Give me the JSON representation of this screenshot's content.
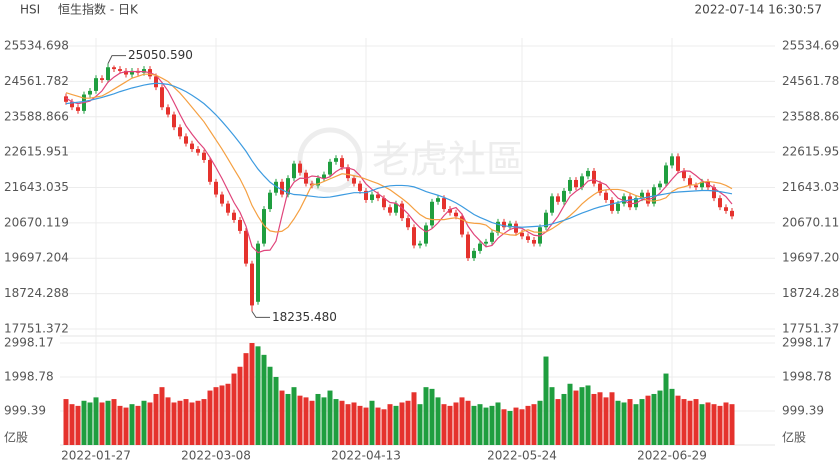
{
  "chart_data": {
    "type": "candlestick",
    "title": "HSI",
    "subtitle": "恒生指数 - 日K",
    "timestamp": "2022-07-14 16:30:57",
    "watermark": "老虎社區",
    "up_color": "#1f9e3f",
    "down_color": "#e5322d",
    "categories": [
      null,
      null,
      null,
      null,
      null,
      "2022-01-27",
      null,
      null,
      null,
      null,
      null,
      null,
      null,
      null,
      null,
      null,
      null,
      null,
      null,
      null,
      null,
      null,
      null,
      null,
      null,
      "2022-03-08",
      null,
      null,
      null,
      null,
      null,
      null,
      null,
      null,
      null,
      null,
      null,
      null,
      null,
      null,
      null,
      null,
      null,
      null,
      null,
      null,
      null,
      null,
      null,
      null,
      "2022-04-13",
      null,
      null,
      null,
      null,
      null,
      null,
      null,
      null,
      null,
      null,
      null,
      null,
      null,
      null,
      null,
      null,
      null,
      null,
      null,
      null,
      null,
      null,
      null,
      null,
      null,
      "2022-05-24",
      null,
      null,
      null,
      null,
      null,
      null,
      null,
      null,
      null,
      null,
      null,
      null,
      null,
      null,
      null,
      null,
      null,
      null,
      null,
      null,
      null,
      null,
      null,
      null,
      "2022-06-29",
      null,
      null,
      null,
      null,
      null,
      null,
      null,
      null,
      null,
      null
    ],
    "ohlc": [
      [
        24150,
        24230,
        23920,
        24000
      ],
      [
        24000,
        24080,
        23770,
        23850
      ],
      [
        23850,
        23930,
        23670,
        23750
      ],
      [
        23750,
        24280,
        23670,
        24200
      ],
      [
        24200,
        24380,
        24120,
        24300
      ],
      [
        24300,
        24730,
        24220,
        24650
      ],
      [
        24650,
        24730,
        24520,
        24600
      ],
      [
        24600,
        25050.59,
        24520,
        24950
      ],
      [
        24950,
        25000,
        24820,
        24900
      ],
      [
        24900,
        24980,
        24770,
        24850
      ],
      [
        24850,
        24930,
        24670,
        24750
      ],
      [
        24750,
        24930,
        24670,
        24850
      ],
      [
        24850,
        24930,
        24720,
        24800
      ],
      [
        24800,
        24980,
        24720,
        24900
      ],
      [
        24900,
        24980,
        24620,
        24700
      ],
      [
        24700,
        24780,
        24320,
        24400
      ],
      [
        24400,
        24480,
        23770,
        23850
      ],
      [
        23850,
        23930,
        23570,
        23650
      ],
      [
        23650,
        23730,
        23220,
        23300
      ],
      [
        23300,
        23380,
        22970,
        23050
      ],
      [
        23050,
        23130,
        22770,
        22850
      ],
      [
        22850,
        22930,
        22620,
        22700
      ],
      [
        22700,
        22780,
        22520,
        22600
      ],
      [
        22600,
        22680,
        22320,
        22400
      ],
      [
        22400,
        22480,
        21720,
        21800
      ],
      [
        21800,
        21880,
        21370,
        21450
      ],
      [
        21450,
        21530,
        21120,
        21200
      ],
      [
        21200,
        21280,
        20870,
        20950
      ],
      [
        20950,
        21030,
        20670,
        20750
      ],
      [
        20750,
        20830,
        20370,
        20450
      ],
      [
        20450,
        20530,
        19470,
        19550
      ],
      [
        19550,
        19630,
        18235.48,
        18400
      ],
      [
        18500,
        20180,
        18420,
        20100
      ],
      [
        20100,
        21130,
        20020,
        21050
      ],
      [
        21050,
        21580,
        20970,
        21500
      ],
      [
        21500,
        21880,
        21420,
        21800
      ],
      [
        21800,
        21880,
        21370,
        21450
      ],
      [
        21450,
        21980,
        21370,
        21900
      ],
      [
        21900,
        22380,
        21820,
        22300
      ],
      [
        22300,
        22380,
        21970,
        22050
      ],
      [
        22050,
        22130,
        21670,
        21750
      ],
      [
        21750,
        21830,
        21620,
        21700
      ],
      [
        21700,
        21980,
        21620,
        21900
      ],
      [
        21900,
        22080,
        21820,
        22000
      ],
      [
        22000,
        22430,
        21920,
        22350
      ],
      [
        22350,
        22530,
        22270,
        22450
      ],
      [
        22450,
        22530,
        22120,
        22200
      ],
      [
        22200,
        22280,
        21820,
        21900
      ],
      [
        21900,
        21980,
        21670,
        21750
      ],
      [
        21750,
        21830,
        21470,
        21550
      ],
      [
        21550,
        21630,
        21220,
        21300
      ],
      [
        21300,
        21530,
        21220,
        21450
      ],
      [
        21450,
        21530,
        21270,
        21350
      ],
      [
        21350,
        21430,
        21020,
        21100
      ],
      [
        21100,
        21180,
        20870,
        20950
      ],
      [
        20950,
        21280,
        20870,
        21200
      ],
      [
        21200,
        21280,
        20720,
        20800
      ],
      [
        20800,
        20880,
        20470,
        20550
      ],
      [
        20550,
        20630,
        19970,
        20050
      ],
      [
        20050,
        20180,
        19970,
        20100
      ],
      [
        20100,
        20680,
        20020,
        20600
      ],
      [
        20600,
        21330,
        20520,
        21250
      ],
      [
        21250,
        21430,
        21170,
        21350
      ],
      [
        21350,
        21430,
        20970,
        21050
      ],
      [
        21050,
        21130,
        20870,
        20950
      ],
      [
        20950,
        21030,
        20770,
        20850
      ],
      [
        20850,
        20930,
        20270,
        20350
      ],
      [
        20350,
        20430,
        19620,
        19700
      ],
      [
        19700,
        19980,
        19620,
        19900
      ],
      [
        19900,
        20180,
        19820,
        20100
      ],
      [
        20100,
        20230,
        20020,
        20150
      ],
      [
        20150,
        20480,
        20070,
        20400
      ],
      [
        20400,
        20780,
        20320,
        20700
      ],
      [
        20700,
        20780,
        20470,
        20550
      ],
      [
        20550,
        20730,
        20470,
        20650
      ],
      [
        20650,
        20730,
        20320,
        20400
      ],
      [
        20400,
        20480,
        20220,
        20300
      ],
      [
        20300,
        20380,
        20120,
        20200
      ],
      [
        20200,
        20280,
        20020,
        20100
      ],
      [
        20100,
        20630,
        20020,
        20550
      ],
      [
        20550,
        21030,
        20470,
        20950
      ],
      [
        20950,
        21480,
        20870,
        21400
      ],
      [
        21400,
        21480,
        21170,
        21250
      ],
      [
        21250,
        21630,
        21170,
        21550
      ],
      [
        21550,
        21930,
        21470,
        21850
      ],
      [
        21850,
        21930,
        21570,
        21650
      ],
      [
        21650,
        22030,
        21570,
        21950
      ],
      [
        21950,
        22180,
        21870,
        22100
      ],
      [
        22100,
        22180,
        21670,
        21750
      ],
      [
        21750,
        21830,
        21420,
        21500
      ],
      [
        21500,
        21580,
        21220,
        21300
      ],
      [
        21300,
        21380,
        20920,
        21000
      ],
      [
        21000,
        21280,
        20920,
        21200
      ],
      [
        21200,
        21480,
        21120,
        21400
      ],
      [
        21400,
        21480,
        21020,
        21100
      ],
      [
        21100,
        21430,
        21020,
        21350
      ],
      [
        21350,
        21580,
        21270,
        21500
      ],
      [
        21500,
        21580,
        21120,
        21200
      ],
      [
        21200,
        21730,
        21120,
        21650
      ],
      [
        21650,
        21830,
        21570,
        21750
      ],
      [
        21750,
        22330,
        21670,
        22250
      ],
      [
        22250,
        22580,
        22170,
        22500
      ],
      [
        22500,
        22580,
        22020,
        22100
      ],
      [
        22100,
        22180,
        21820,
        21900
      ],
      [
        21900,
        21980,
        21620,
        21700
      ],
      [
        21700,
        21780,
        21570,
        21650
      ],
      [
        21650,
        21880,
        21570,
        21800
      ],
      [
        21800,
        21880,
        21570,
        21650
      ],
      [
        21650,
        21730,
        21270,
        21350
      ],
      [
        21350,
        21430,
        21020,
        21100
      ],
      [
        21100,
        21180,
        20920,
        21000
      ],
      [
        21000,
        21080,
        20770,
        20850
      ]
    ],
    "ylim": [
      17751.372,
      25534.698
    ],
    "yticks": [
      17751.372,
      18724.288,
      19697.204,
      20670.119,
      21643.035,
      22615.951,
      23588.866,
      24561.782,
      25534.698
    ],
    "grid": true,
    "annotations": [
      {
        "value": 25050.59,
        "label": "25050.590"
      },
      {
        "value": 18235.48,
        "label": "18235.480"
      }
    ],
    "ma": [
      {
        "color": "#e0457b",
        "values": [
          24100,
          24000,
          23950,
          23980,
          24020,
          24150,
          24300,
          24540,
          24680,
          24790,
          24830,
          24830,
          24830,
          24830,
          24800,
          24730,
          24530,
          24300,
          23980,
          23650,
          23340,
          23110,
          22900,
          22720,
          22470,
          22190,
          21890,
          21560,
          21230,
          20960,
          20580,
          20020,
          19850,
          19910,
          19920,
          20170,
          20870,
          21540,
          21790,
          21900,
          21890,
          21960,
          21940,
          21880,
          21940,
          22080,
          22180,
          22180,
          22130,
          21970,
          21740,
          21590,
          21480,
          21350,
          21230,
          21210,
          21080,
          20920,
          20710,
          20540,
          20420,
          20510,
          20670,
          20870,
          21040,
          21090,
          20910,
          20580,
          20350,
          20180,
          20010,
          20050,
          20250,
          20380,
          20490,
          20540,
          20520,
          20420,
          20330,
          20310,
          20420,
          20640,
          20850,
          21140,
          21400,
          21540,
          21650,
          21820,
          21860,
          21790,
          21720,
          21530,
          21350,
          21280,
          21200,
          21210,
          21310,
          21310,
          21360,
          21490,
          21670,
          21870,
          22050,
          22100,
          22090,
          21970,
          21830,
          21740,
          21630,
          21510,
          21390,
          21190
        ]
      },
      {
        "color": "#f5a042",
        "values": [
          24250,
          24200,
          24150,
          24100,
          24100,
          24130,
          24160,
          24250,
          24350,
          24450,
          24550,
          24650,
          24700,
          24760,
          24760,
          24730,
          24650,
          24560,
          24400,
          24240,
          24050,
          23850,
          23650,
          23450,
          23200,
          22950,
          22700,
          22430,
          22150,
          21880,
          21550,
          21150,
          20850,
          20600,
          20450,
          20420,
          20440,
          20550,
          20780,
          21050,
          21380,
          21720,
          21740,
          21810,
          21880,
          21950,
          22020,
          22000,
          21970,
          21930,
          21870,
          21810,
          21750,
          21670,
          21580,
          21460,
          21340,
          21210,
          21050,
          20900,
          20800,
          20760,
          20760,
          20760,
          20790,
          20810,
          20760,
          20680,
          20660,
          20650,
          20610,
          20480,
          20420,
          20370,
          20340,
          20330,
          20430,
          20480,
          20420,
          20410,
          20420,
          20510,
          20620,
          20740,
          20870,
          21020,
          21190,
          21330,
          21450,
          21550,
          21580,
          21590,
          21590,
          21560,
          21490,
          21420,
          21370,
          21280,
          21270,
          21300,
          21360,
          21530,
          21620,
          21660,
          21710,
          21720,
          21790,
          21810,
          21790,
          21760,
          21700,
          21610
        ]
      },
      {
        "color": "#3d9be0",
        "values": [
          23950,
          23970,
          23990,
          24010,
          24040,
          24080,
          24120,
          24170,
          24220,
          24280,
          24330,
          24380,
          24420,
          24460,
          24490,
          24510,
          24500,
          24480,
          24430,
          24360,
          24280,
          24180,
          24070,
          23950,
          23800,
          23640,
          23460,
          23270,
          23070,
          22860,
          22640,
          22380,
          22150,
          21960,
          21790,
          21670,
          21580,
          21500,
          21450,
          21440,
          21420,
          21400,
          21380,
          21370,
          21380,
          21410,
          21440,
          21470,
          21500,
          21500,
          21500,
          21560,
          21620,
          21660,
          21690,
          21700,
          21700,
          21690,
          21660,
          21600,
          21530,
          21480,
          21430,
          21370,
          21300,
          21220,
          21120,
          21010,
          20900,
          20820,
          20750,
          20680,
          20630,
          20590,
          20570,
          20560,
          20550,
          20560,
          20570,
          20580,
          20600,
          20640,
          20690,
          20740,
          20800,
          20870,
          20940,
          21000,
          21060,
          21110,
          21150,
          21190,
          21230,
          21270,
          21300,
          21320,
          21350,
          21380,
          21410,
          21440,
          21470,
          21500,
          21520,
          21530,
          21540,
          21550,
          21560,
          21560,
          21550,
          21530,
          21500,
          21470
        ]
      }
    ],
    "volume": {
      "unit": "亿股",
      "ylim": [
        0,
        2998.17
      ],
      "yticks": [
        999.39,
        1998.78,
        2998.17
      ],
      "values": [
        1350,
        1200,
        1150,
        1300,
        1250,
        1400,
        1250,
        1300,
        1350,
        1150,
        1100,
        1200,
        1150,
        1300,
        1250,
        1500,
        1700,
        1400,
        1250,
        1300,
        1350,
        1250,
        1300,
        1350,
        1600,
        1700,
        1750,
        1800,
        2100,
        2300,
        2700,
        2998.17,
        2900,
        2650,
        2300,
        2000,
        1600,
        1500,
        1700,
        1450,
        1400,
        1300,
        1500,
        1400,
        1600,
        1350,
        1300,
        1200,
        1250,
        1150,
        1100,
        1300,
        1100,
        1050,
        1200,
        1150,
        1250,
        1300,
        1550,
        1200,
        1700,
        1650,
        1400,
        1200,
        1150,
        1250,
        1400,
        1300,
        1150,
        1200,
        1100,
        1150,
        1250,
        1050,
        1000,
        1100,
        1050,
        1150,
        1200,
        1300,
        2600,
        1700,
        1350,
        1500,
        1800,
        1600,
        1700,
        1750,
        1500,
        1550,
        1400,
        1550,
        1300,
        1250,
        1350,
        1200,
        1350,
        1450,
        1500,
        1600,
        2100,
        1650,
        1450,
        1350,
        1300,
        1350,
        1200,
        1250,
        1200,
        1150,
        1250,
        1200
      ]
    }
  }
}
